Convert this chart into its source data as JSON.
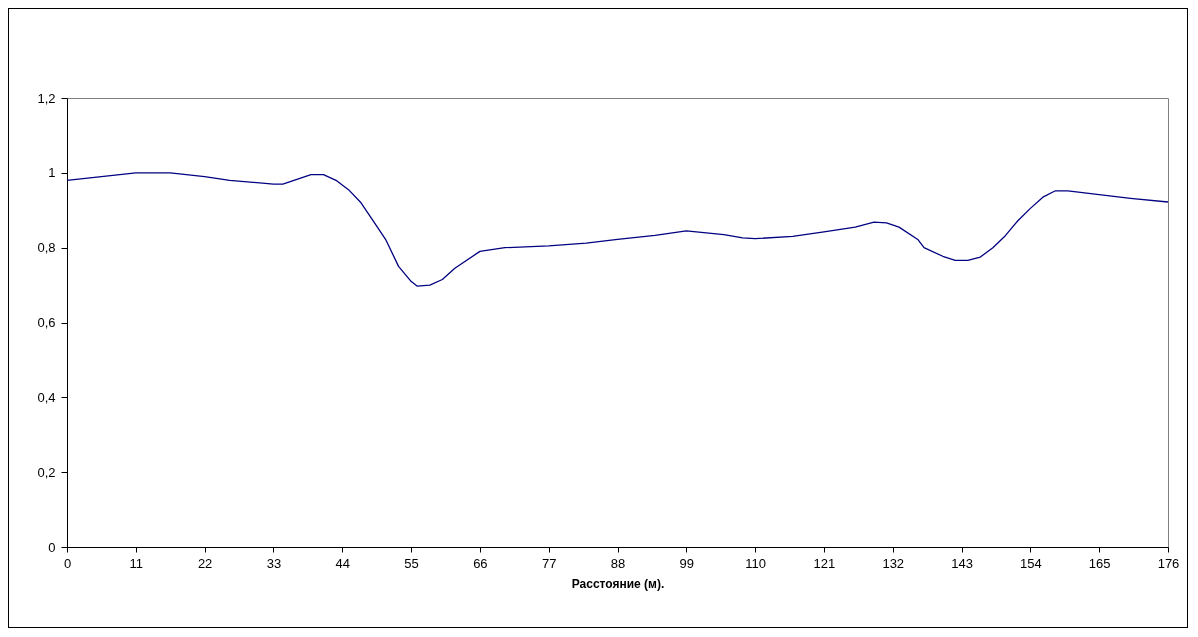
{
  "chart_data": {
    "type": "line",
    "xlabel": "Расстояние (м).",
    "xlim": [
      0,
      176
    ],
    "xticks": [
      0,
      11,
      22,
      33,
      44,
      55,
      66,
      77,
      88,
      99,
      110,
      121,
      132,
      143,
      154,
      165,
      176
    ],
    "ylim": [
      0,
      1.2
    ],
    "yticks": [
      0,
      {
        "value": 0.2,
        "label": "0,2"
      },
      {
        "value": 0.4,
        "label": "0,4"
      },
      {
        "value": 0.6,
        "label": "0,6"
      },
      {
        "value": 0.8,
        "label": "0,8"
      },
      1,
      {
        "value": 1.2,
        "label": "1,2"
      }
    ],
    "grid": false,
    "marker": "none",
    "line_style": "solid",
    "x": [
      0,
      5.5,
      11,
      16.5,
      22,
      26,
      33,
      34.5,
      39,
      41,
      43,
      45,
      47,
      49,
      51,
      53,
      55,
      56,
      58,
      60,
      62,
      66,
      70,
      77,
      83,
      88,
      94,
      99,
      105,
      108,
      110,
      116,
      121,
      126,
      129,
      131,
      133,
      136,
      137,
      140,
      142,
      144,
      146,
      148,
      150,
      152,
      154,
      156,
      158,
      160,
      165,
      170,
      176
    ],
    "series": [
      {
        "color": "#000080",
        "values": [
          0.98,
          0.99,
          1.0,
          1.0,
          0.99,
          0.98,
          0.97,
          0.97,
          0.995,
          0.995,
          0.98,
          0.955,
          0.92,
          0.87,
          0.82,
          0.75,
          0.71,
          0.697,
          0.7,
          0.715,
          0.745,
          0.79,
          0.8,
          0.805,
          0.812,
          0.822,
          0.833,
          0.845,
          0.835,
          0.826,
          0.824,
          0.83,
          0.842,
          0.855,
          0.868,
          0.866,
          0.855,
          0.822,
          0.8,
          0.777,
          0.766,
          0.766,
          0.775,
          0.8,
          0.832,
          0.872,
          0.905,
          0.935,
          0.952,
          0.952,
          0.942,
          0.932,
          0.922
        ]
      }
    ]
  }
}
